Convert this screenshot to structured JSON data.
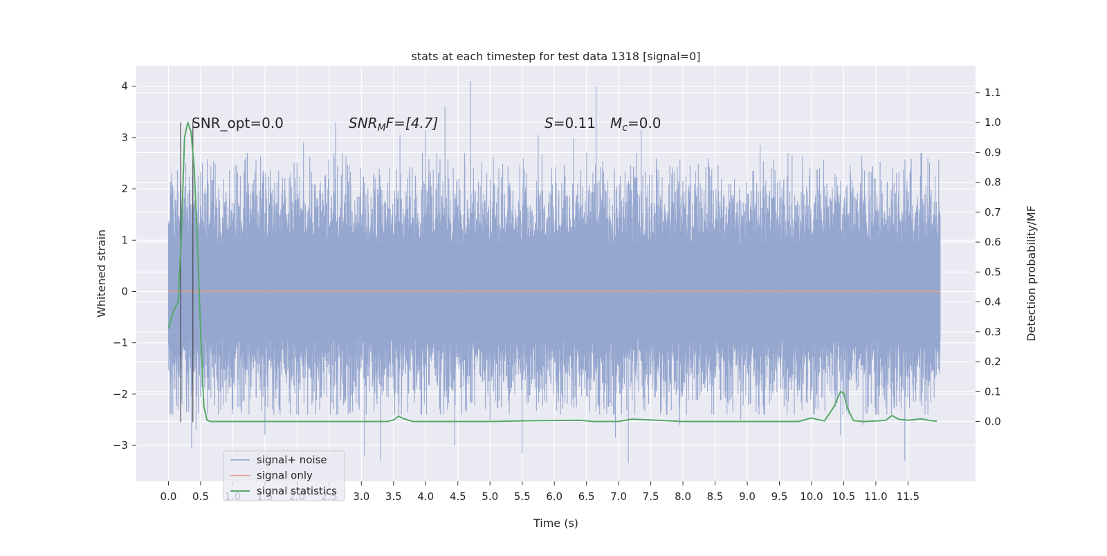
{
  "chart_data": {
    "type": "line",
    "title": "stats at each timestep for test data 1318 [signal=0]",
    "xlabel": "Time (s)",
    "ylabel_left": "Whitened strain",
    "ylabel_right": "Detection probability/MF",
    "xlim": [
      -0.5,
      12.55
    ],
    "ylim_left": [
      -3.7,
      4.4
    ],
    "ylim_right": [
      -0.2,
      1.19
    ],
    "x_ticks": [
      0.0,
      0.5,
      1.0,
      1.5,
      2.0,
      2.5,
      3.0,
      3.5,
      4.0,
      4.5,
      5.0,
      5.5,
      6.0,
      6.5,
      7.0,
      7.5,
      8.0,
      8.5,
      9.0,
      9.5,
      10.0,
      10.5,
      11.0,
      11.5
    ],
    "x_tick_labels": [
      "0.0",
      "0.5",
      "1.0",
      "1.5",
      "2.0",
      "2.5",
      "3.0",
      "3.5",
      "4.0",
      "4.5",
      "5.0",
      "5.5",
      "6.0",
      "6.5",
      "7.0",
      "7.5",
      "8.0",
      "8.5",
      "9.0",
      "9.5",
      "10.0",
      "10.5",
      "11.0",
      "11.5"
    ],
    "y_left_ticks": [
      -3,
      -2,
      -1,
      0,
      1,
      2,
      3,
      4
    ],
    "y_left_tick_labels": [
      "−3",
      "−2",
      "−1",
      "0",
      "1",
      "2",
      "3",
      "4"
    ],
    "y_right_ticks": [
      0.0,
      0.1,
      0.2,
      0.3,
      0.4,
      0.5,
      0.6,
      0.7,
      0.8,
      0.9,
      1.0,
      1.1
    ],
    "y_right_tick_labels": [
      "0.0",
      "0.1",
      "0.2",
      "0.3",
      "0.4",
      "0.5",
      "0.6",
      "0.7",
      "0.8",
      "0.9",
      "1.0",
      "1.1"
    ],
    "grid": true,
    "legend_position": "lower-left",
    "annotations": {
      "snr_opt": "SNR_opt=0.0",
      "snr_mf_main": "SNR",
      "snr_mf_sub": "M",
      "snr_mf_rest": "F=[4.7]",
      "s_main": "S",
      "s_rest": "=0.11",
      "mc_main": "M",
      "mc_sub": "c",
      "mc_rest": "=0.0"
    },
    "vertical_markers": [
      0.19,
      0.38
    ],
    "series": [
      {
        "name": "signal+ noise",
        "color": "#8da0cb",
        "axis": "left",
        "t_range": [
          0.0,
          12.0
        ],
        "band_typical": [
          -1.5,
          1.55
        ],
        "spikes": [
          [
            0.07,
            1.6
          ],
          [
            0.1,
            -1.9
          ],
          [
            0.27,
            2.5
          ],
          [
            0.36,
            -3.05
          ],
          [
            0.43,
            -2.7
          ],
          [
            1.0,
            -2.3
          ],
          [
            1.5,
            -2.8
          ],
          [
            2.1,
            2.9
          ],
          [
            2.6,
            3.3
          ],
          [
            3.05,
            -3.2
          ],
          [
            3.3,
            -3.3
          ],
          [
            3.6,
            3.05
          ],
          [
            4.0,
            3.15
          ],
          [
            4.3,
            3.6
          ],
          [
            4.45,
            -3.0
          ],
          [
            4.7,
            4.1
          ],
          [
            5.0,
            -2.5
          ],
          [
            5.3,
            -2.2
          ],
          [
            5.5,
            -3.15
          ],
          [
            5.75,
            3.05
          ],
          [
            6.3,
            3.0
          ],
          [
            6.65,
            4.0
          ],
          [
            6.95,
            -2.85
          ],
          [
            7.15,
            -3.35
          ],
          [
            7.35,
            3.15
          ],
          [
            7.95,
            -2.6
          ],
          [
            8.9,
            -2.5
          ],
          [
            9.2,
            2.85
          ],
          [
            10.1,
            -2.3
          ],
          [
            10.45,
            -2.8
          ],
          [
            10.8,
            -2.6
          ],
          [
            11.45,
            -3.3
          ],
          [
            11.7,
            2.7
          ]
        ]
      },
      {
        "name": "signal only",
        "color": "#dd9f86",
        "axis": "left",
        "x": [
          0.0,
          12.0
        ],
        "y": [
          0.0,
          0.0
        ]
      },
      {
        "name": "signal statistics",
        "color": "#55a868",
        "axis": "right",
        "x": [
          0.0,
          0.05,
          0.1,
          0.15,
          0.2,
          0.25,
          0.3,
          0.35,
          0.4,
          0.45,
          0.5,
          0.55,
          0.6,
          0.65,
          0.75,
          1.0,
          2.0,
          3.0,
          3.4,
          3.5,
          3.58,
          3.65,
          3.8,
          4.0,
          5.0,
          5.8,
          6.4,
          6.6,
          7.0,
          7.2,
          7.6,
          8.0,
          9.0,
          9.8,
          10.0,
          10.1,
          10.2,
          10.35,
          10.45,
          10.5,
          10.55,
          10.65,
          10.8,
          11.0,
          11.15,
          11.25,
          11.35,
          11.5,
          11.7,
          11.85,
          11.95
        ],
        "y": [
          0.31,
          0.35,
          0.38,
          0.4,
          0.62,
          0.95,
          1.0,
          0.97,
          0.85,
          0.6,
          0.3,
          0.05,
          0.005,
          0.0,
          0.0,
          0.0,
          0.0,
          0.0,
          0.0,
          0.005,
          0.018,
          0.01,
          0.0,
          0.0,
          0.0,
          0.003,
          0.004,
          0.0,
          0.0,
          0.008,
          0.004,
          0.0,
          0.0,
          0.0,
          0.012,
          0.006,
          0.002,
          0.05,
          0.1,
          0.095,
          0.05,
          0.003,
          0.0,
          0.002,
          0.004,
          0.02,
          0.008,
          0.004,
          0.009,
          0.003,
          0.001
        ]
      }
    ]
  }
}
